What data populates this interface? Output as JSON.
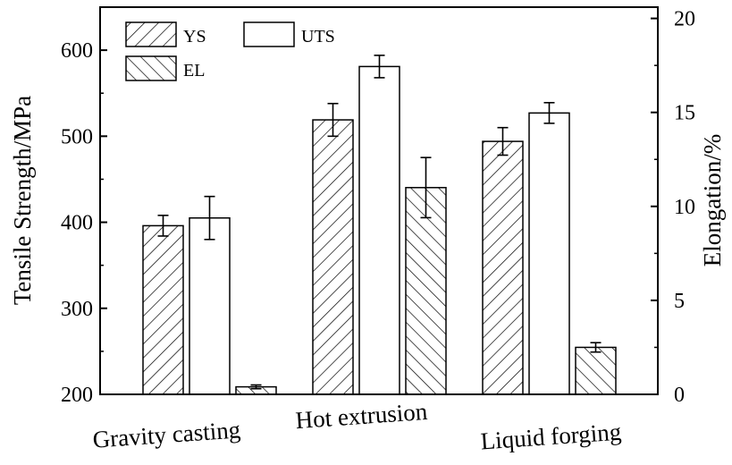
{
  "chart_data": {
    "type": "bar",
    "categories": [
      "Gravity casting",
      "Hot extrusion",
      "Liquid forging"
    ],
    "series": [
      {
        "name": "YS",
        "axis": "left",
        "pattern": "forward-hatch",
        "values": [
          396,
          519,
          494
        ],
        "errors": [
          12,
          19,
          16
        ]
      },
      {
        "name": "UTS",
        "axis": "left",
        "pattern": "open",
        "values": [
          405,
          581,
          527
        ],
        "errors": [
          25,
          13,
          12
        ]
      },
      {
        "name": "EL",
        "axis": "right",
        "pattern": "back-hatch",
        "values": [
          0.4,
          11.0,
          2.5
        ],
        "errors": [
          0.1,
          1.6,
          0.25
        ]
      }
    ],
    "ylabel": "Tensile Strength/MPa",
    "ylim": [
      200,
      650
    ],
    "yticks": [
      200,
      300,
      400,
      500,
      600
    ],
    "ylabel_right": "Elongation/%",
    "ylim_right": [
      0,
      20.6
    ],
    "yticks_right": [
      0,
      5,
      10,
      15,
      20
    ],
    "legend": "top-left",
    "grid": false
  }
}
